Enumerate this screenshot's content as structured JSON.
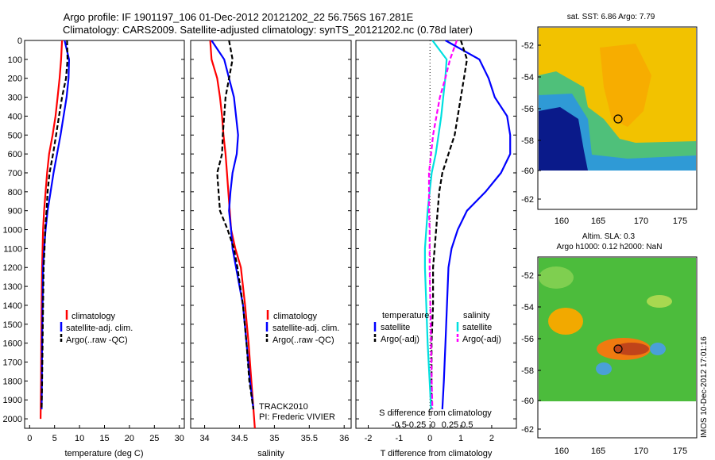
{
  "header": {
    "title_line1": "Argo profile: IF 1901197_106 01-Dec-2012 20121202_22 56.756S 167.281E",
    "title_line2": "Climatology: CARS2009. Satellite-adjusted climatology: synTS_20121202.nc (0.78d later)"
  },
  "colors": {
    "climatology": "#ff0000",
    "satellite": "#0000ff",
    "argo": "#000000",
    "s_satellite": "#00e0e0",
    "s_argo": "#ff00ff"
  },
  "track_note": {
    "line1": "TRACK2010",
    "line2": "PI: Frederic VIVIER"
  },
  "map_sst": {
    "title": "sat. SST: 6.86 Argo: 7.79",
    "yticks": [
      "-52",
      "-54",
      "-56",
      "-58",
      "-60",
      "-62"
    ],
    "xticks": [
      "160",
      "165",
      "170",
      "175"
    ]
  },
  "map_sla": {
    "title1": "Altim. SLA: 0.3",
    "title2": "Argo h1000: 0.12 h2000: NaN",
    "yticks": [
      "-52",
      "-54",
      "-56",
      "-58",
      "-60",
      "-62"
    ],
    "xticks": [
      "160",
      "165",
      "170",
      "175"
    ]
  },
  "credit": "IMOS 10-Dec-2012 17:01:16",
  "chart_data": [
    {
      "type": "line",
      "panel": "temperature",
      "xlabel": "temperature (deg C)",
      "ylabel": "",
      "xlim": [
        -1,
        31
      ],
      "ylim": [
        2050,
        0
      ],
      "xticks": [
        "0",
        "5",
        "10",
        "15",
        "20",
        "25",
        "30"
      ],
      "yticks": [
        "0",
        "100",
        "200",
        "300",
        "400",
        "500",
        "600",
        "700",
        "800",
        "900",
        "1000",
        "1100",
        "1200",
        "1300",
        "1400",
        "1500",
        "1600",
        "1700",
        "1800",
        "1900",
        "2000"
      ],
      "legend": [
        "climatology",
        "satellite-adj. clim.",
        "Argo(..raw -QC)"
      ],
      "series": [
        {
          "name": "climatology",
          "x": [
            6.5,
            6.3,
            6.0,
            5.6,
            5.2,
            4.6,
            3.9,
            3.5,
            3.2,
            2.9,
            2.7,
            2.6,
            2.5,
            2.4,
            2.35,
            2.3,
            2.2
          ],
          "y": [
            0,
            100,
            200,
            300,
            400,
            500,
            600,
            700,
            800,
            900,
            1000,
            1100,
            1200,
            1400,
            1600,
            1800,
            2000
          ]
        },
        {
          "name": "satellite-adj. clim.",
          "x": [
            7.0,
            7.9,
            7.8,
            7.4,
            6.8,
            6.2,
            5.5,
            4.8,
            4.2,
            3.6,
            3.2,
            2.9,
            2.7,
            2.6,
            2.5,
            2.45,
            2.4
          ],
          "y": [
            0,
            100,
            200,
            300,
            400,
            500,
            600,
            700,
            800,
            900,
            1000,
            1100,
            1200,
            1400,
            1600,
            1800,
            1950
          ]
        },
        {
          "name": "Argo(..raw -QC)",
          "x": [
            7.5,
            7.6,
            7.3,
            6.5,
            5.9,
            5.3,
            4.7,
            4.0,
            3.6,
            3.4,
            3.1,
            3.0,
            2.8,
            2.7,
            2.6,
            2.5,
            2.4
          ],
          "y": [
            0,
            100,
            200,
            300,
            400,
            500,
            600,
            700,
            800,
            900,
            1000,
            1100,
            1200,
            1400,
            1600,
            1800,
            1950
          ]
        }
      ]
    },
    {
      "type": "line",
      "panel": "salinity",
      "xlabel": "salinity",
      "xlim": [
        33.8,
        36.1
      ],
      "ylim": [
        2050,
        0
      ],
      "xticks": [
        "34",
        "34.5",
        "35",
        "35.5",
        "36"
      ],
      "legend": [
        "climatology",
        "satellite-adj. clim.",
        "Argo(..raw -QC)"
      ],
      "series": [
        {
          "name": "climatology",
          "x": [
            34.08,
            34.1,
            34.18,
            34.22,
            34.25,
            34.27,
            34.3,
            34.32,
            34.34,
            34.36,
            34.38,
            34.44,
            34.52,
            34.58,
            34.63,
            34.67,
            34.72
          ],
          "y": [
            0,
            100,
            200,
            300,
            400,
            500,
            600,
            700,
            800,
            900,
            1000,
            1100,
            1200,
            1400,
            1600,
            1800,
            2050
          ]
        },
        {
          "name": "satellite-adj. clim.",
          "x": [
            34.1,
            34.28,
            34.35,
            34.42,
            34.45,
            34.48,
            34.46,
            34.4,
            34.37,
            34.35,
            34.38,
            34.4,
            34.45,
            34.55,
            34.6,
            34.65,
            34.7
          ],
          "y": [
            0,
            100,
            200,
            300,
            400,
            500,
            600,
            700,
            800,
            900,
            1000,
            1100,
            1200,
            1400,
            1600,
            1800,
            1950
          ]
        },
        {
          "name": "Argo(..raw -QC)",
          "x": [
            34.35,
            34.4,
            34.35,
            34.3,
            34.28,
            34.26,
            34.25,
            34.18,
            34.2,
            34.22,
            34.33,
            34.42,
            34.47,
            34.55,
            34.6,
            34.64,
            34.7
          ],
          "y": [
            0,
            100,
            200,
            300,
            400,
            500,
            600,
            700,
            800,
            900,
            1000,
            1100,
            1200,
            1400,
            1600,
            1800,
            1950
          ]
        }
      ]
    },
    {
      "type": "line",
      "panel": "difference",
      "xlabel": "T difference from climatology",
      "top_label": "S difference from climatology",
      "xlim": [
        -2.4,
        2.8
      ],
      "ylim": [
        2050,
        0
      ],
      "xticks": [
        "-2",
        "-1",
        "0",
        "1",
        "2"
      ],
      "s_xticks": [
        "-0.5",
        "-0.25",
        "0",
        "0.25",
        "0.5"
      ],
      "legend_t": {
        "title": "temperature",
        "entries": [
          "satellite",
          "Argo(-adj)"
        ]
      },
      "legend_s": {
        "title": "salinity",
        "entries": [
          "satellite",
          "Argo(-adj)"
        ]
      },
      "series": [
        {
          "name": "satellite",
          "x": [
            0.5,
            1.6,
            1.9,
            2.1,
            2.5,
            2.6,
            2.6,
            2.3,
            1.8,
            1.2,
            0.9,
            0.7,
            0.6,
            0.55,
            0.5,
            0.45,
            0.4
          ],
          "y": [
            0,
            100,
            200,
            300,
            400,
            500,
            600,
            700,
            800,
            900,
            1000,
            1100,
            1200,
            1400,
            1600,
            1800,
            1950
          ]
        },
        {
          "name": "Argo(-adj)",
          "x": [
            1.0,
            1.2,
            1.1,
            1.0,
            0.9,
            0.8,
            0.6,
            0.4,
            0.3,
            0.25,
            0.2,
            0.15,
            0.1,
            0.1,
            0.05,
            0.05,
            0.05
          ],
          "y": [
            0,
            100,
            200,
            300,
            400,
            500,
            600,
            700,
            800,
            900,
            1000,
            1100,
            1200,
            1400,
            1600,
            1800,
            1950
          ]
        },
        {
          "name": "satellite",
          "x": [
            -0.01,
            0.2,
            0.18,
            0.15,
            0.12,
            0.08,
            0.04,
            -0.02,
            -0.05,
            -0.08,
            -0.1,
            -0.12,
            -0.12,
            -0.1,
            -0.08,
            -0.05,
            -0.03
          ],
          "y": [
            0,
            100,
            200,
            300,
            400,
            500,
            600,
            700,
            800,
            900,
            1000,
            1100,
            1200,
            1400,
            1600,
            1800,
            1950
          ]
        },
        {
          "name": "Argo(-adj)",
          "x": [
            0.35,
            0.25,
            0.18,
            0.1,
            0.05,
            0.0,
            -0.03,
            -0.06,
            -0.06,
            -0.06,
            -0.05,
            -0.05,
            -0.05,
            -0.04,
            -0.03,
            -0.02,
            -0.01
          ],
          "y": [
            0,
            100,
            200,
            300,
            400,
            500,
            600,
            700,
            800,
            900,
            1000,
            1100,
            1200,
            1400,
            1600,
            1800,
            1950
          ]
        }
      ]
    }
  ]
}
